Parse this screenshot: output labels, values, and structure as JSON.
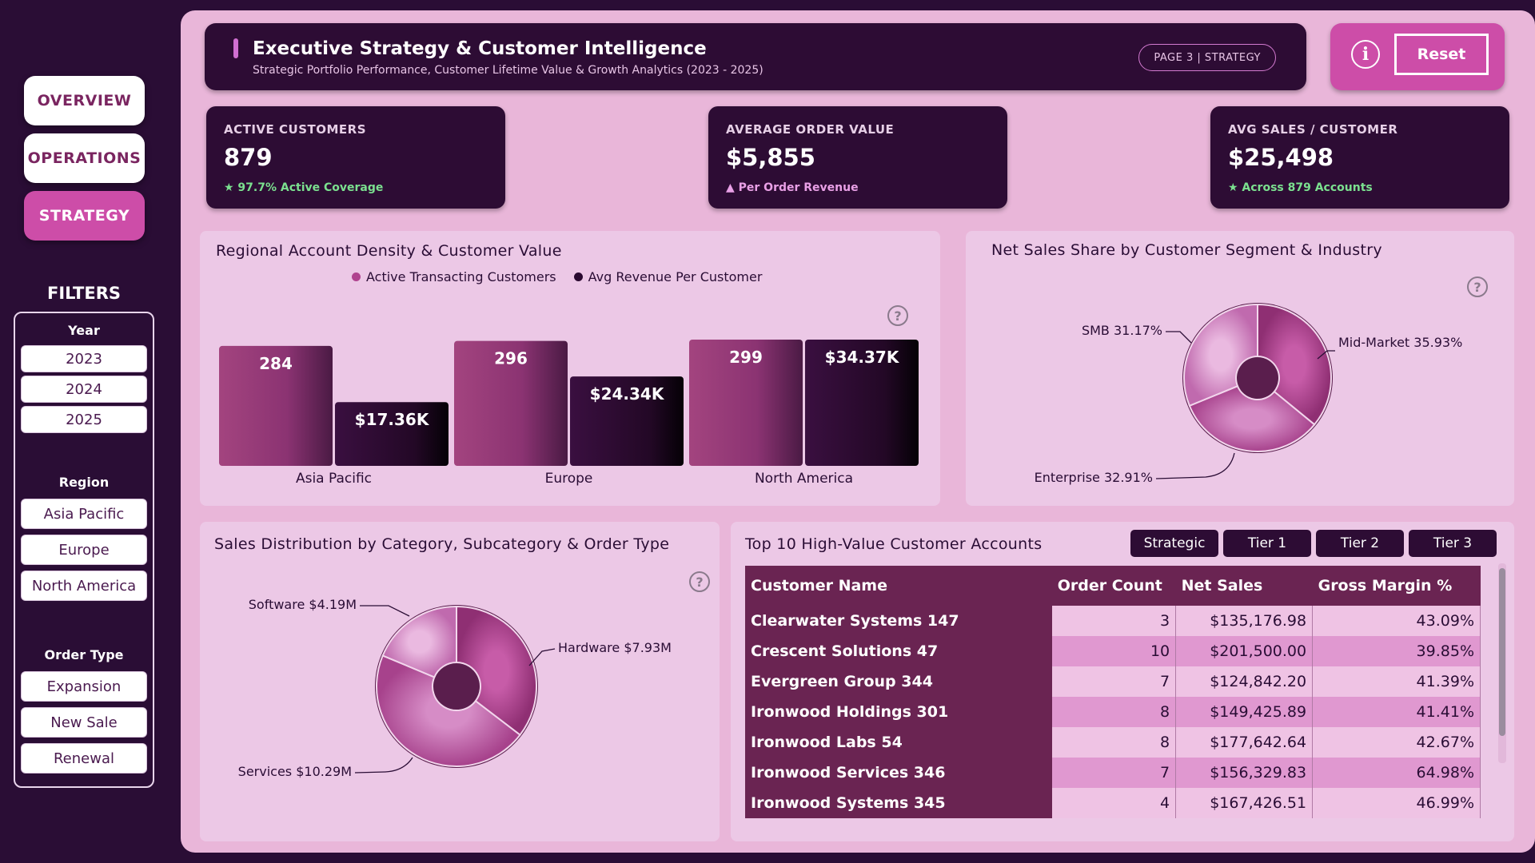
{
  "nav": {
    "overview": "OVERVIEW",
    "operations": "OPERATIONS",
    "strategy": "STRATEGY"
  },
  "filters": {
    "title": "FILTERS",
    "year_label": "Year",
    "years": [
      "2023",
      "2024",
      "2025"
    ],
    "region_label": "Region",
    "regions": [
      "Asia Pacific",
      "Europe",
      "North America"
    ],
    "order_type_label": "Order Type",
    "order_types": [
      "Expansion",
      "New Sale",
      "Renewal"
    ]
  },
  "header": {
    "title": "Executive Strategy & Customer Intelligence",
    "subtitle": "Strategic Portfolio Performance, Customer Lifetime Value & Growth Analytics (2023 - 2025)",
    "page_pill": "PAGE 3 | STRATEGY",
    "info_icon": "i",
    "reset_label": "Reset"
  },
  "kpis": [
    {
      "label": "ACTIVE CUSTOMERS",
      "value": "879",
      "note": "★ 97.7% Active Coverage"
    },
    {
      "label": "AVERAGE ORDER VALUE",
      "value": "$5,855",
      "note": "▲ Per Order Revenue"
    },
    {
      "label": "AVG SALES / CUSTOMER",
      "value": "$25,498",
      "note": "★ Across 879 Accounts"
    }
  ],
  "colors": {
    "dark": "#2d0c34",
    "accent": "#cd4da8",
    "bar_a": "#9c3a80",
    "bar_b": "#2a0a30",
    "green": "#7be08f"
  },
  "charts": {
    "regional_title": "Regional Account Density & Customer Value",
    "segment_title": "Net Sales Share by Customer Segment & Industry",
    "category_title": "Sales Distribution by Category, Subcategory & Order Type",
    "help_icon": "?"
  },
  "chart_data": [
    {
      "type": "bar",
      "title": "Regional Account Density & Customer Value",
      "categories": [
        "Asia Pacific",
        "Europe",
        "North America"
      ],
      "series": [
        {
          "name": "Active Transacting Customers",
          "values": [
            284,
            296,
            299
          ],
          "labels": [
            "284",
            "296",
            "299"
          ]
        },
        {
          "name": "Avg Revenue Per Customer",
          "values": [
            17360,
            24340,
            34370
          ],
          "labels": [
            "$17.36K",
            "$24.34K",
            "$34.37K"
          ]
        }
      ],
      "legend": "top-center"
    },
    {
      "type": "pie",
      "title": "Net Sales Share by Customer Segment & Industry",
      "slices": [
        {
          "label": "Mid-Market 35.93%",
          "value": 35.93
        },
        {
          "label": "Enterprise 32.91%",
          "value": 32.91
        },
        {
          "label": "SMB 31.17%",
          "value": 31.17
        }
      ]
    },
    {
      "type": "pie",
      "title": "Sales Distribution by Category, Subcategory & Order Type",
      "slices": [
        {
          "label": "Hardware $7.93M",
          "value": 7.93
        },
        {
          "label": "Services $10.29M",
          "value": 10.29
        },
        {
          "label": "Software $4.19M",
          "value": 4.19
        }
      ]
    }
  ],
  "table": {
    "title": "Top 10 High-Value Customer Accounts",
    "tiers": [
      "Strategic",
      "Tier 1",
      "Tier 2",
      "Tier 3"
    ],
    "columns": [
      "Customer Name",
      "Order Count",
      "Net Sales",
      "Gross Margin %"
    ],
    "rows": [
      [
        "Clearwater Systems 147",
        "3",
        "$135,176.98",
        "43.09%"
      ],
      [
        "Crescent Solutions 47",
        "10",
        "$201,500.00",
        "39.85%"
      ],
      [
        "Evergreen Group 344",
        "7",
        "$124,842.20",
        "41.39%"
      ],
      [
        "Ironwood Holdings 301",
        "8",
        "$149,425.89",
        "41.41%"
      ],
      [
        "Ironwood Labs 54",
        "8",
        "$177,642.64",
        "42.67%"
      ],
      [
        "Ironwood Services 346",
        "7",
        "$156,329.83",
        "64.98%"
      ],
      [
        "Ironwood Systems 345",
        "4",
        "$167,426.51",
        "46.99%"
      ]
    ]
  }
}
